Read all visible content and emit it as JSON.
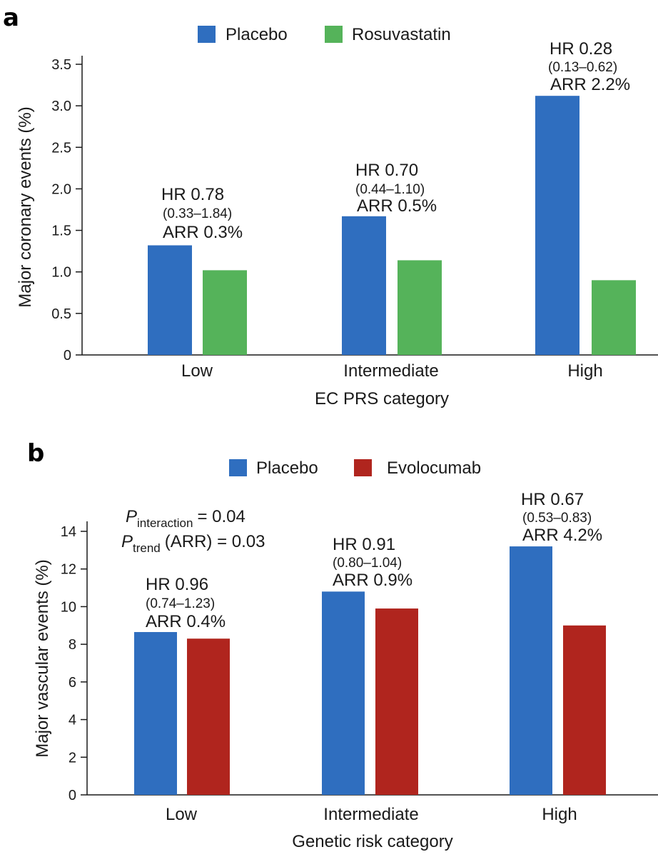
{
  "chart_data": [
    {
      "panel": "a",
      "type": "bar",
      "title": "",
      "xlabel": "EC PRS category",
      "ylabel": "Major coronary events (%)",
      "ylim": [
        0,
        3.5
      ],
      "yticks": [
        "0",
        "0.5",
        "1.0",
        "1.5",
        "2.0",
        "2.5",
        "3.0",
        "3.5"
      ],
      "ytick_values": [
        0,
        0.5,
        1.0,
        1.5,
        2.0,
        2.5,
        3.0,
        3.5
      ],
      "grid": false,
      "legend_position": "top-center",
      "categories": [
        "Low",
        "Intermediate",
        "High"
      ],
      "series": [
        {
          "name": "Placebo",
          "color": "#2f6ebf",
          "values": [
            1.32,
            1.67,
            3.12
          ]
        },
        {
          "name": "Rosuvastatin",
          "color": "#55b35a",
          "values": [
            1.02,
            1.14,
            0.9
          ]
        }
      ],
      "annotations": [
        {
          "hr": "HR 0.78",
          "ci": "(0.33–1.84)",
          "arr": "ARR 0.3%"
        },
        {
          "hr": "HR 0.70",
          "ci": "(0.44–1.10)",
          "arr": "ARR 0.5%"
        },
        {
          "hr": "HR 0.28",
          "ci": "(0.13–0.62)",
          "arr": "ARR 2.2%"
        }
      ]
    },
    {
      "panel": "b",
      "type": "bar",
      "title": "",
      "xlabel": "Genetic risk category",
      "ylabel": "Major vascular events (%)",
      "ylim": [
        0,
        14
      ],
      "yticks": [
        "0",
        "2",
        "4",
        "6",
        "8",
        "10",
        "12",
        "14"
      ],
      "ytick_values": [
        0,
        2,
        4,
        6,
        8,
        10,
        12,
        14
      ],
      "grid": false,
      "legend_position": "top-center",
      "categories": [
        "Low",
        "Intermediate",
        "High"
      ],
      "series": [
        {
          "name": "Placebo",
          "color": "#2f6ebf",
          "values": [
            8.65,
            10.8,
            13.2
          ]
        },
        {
          "name": "Evolocumab",
          "color": "#b0251e",
          "values": [
            8.3,
            9.9,
            9.0
          ]
        }
      ],
      "annotations": [
        {
          "hr": "HR 0.96",
          "ci": "(0.74–1.23)",
          "arr": "ARR 0.4%"
        },
        {
          "hr": "HR 0.91",
          "ci": "(0.80–1.04)",
          "arr": "ARR 0.9%"
        },
        {
          "hr": "HR 0.67",
          "ci": "(0.53–0.83)",
          "arr": "ARR 4.2%"
        }
      ],
      "p_values": {
        "interaction": {
          "symbol": "P",
          "subscript": "interaction",
          "value": "= 0.04"
        },
        "trend": {
          "symbol": "P",
          "subscript": "trend",
          "value": "(ARR) = 0.03"
        }
      }
    }
  ]
}
